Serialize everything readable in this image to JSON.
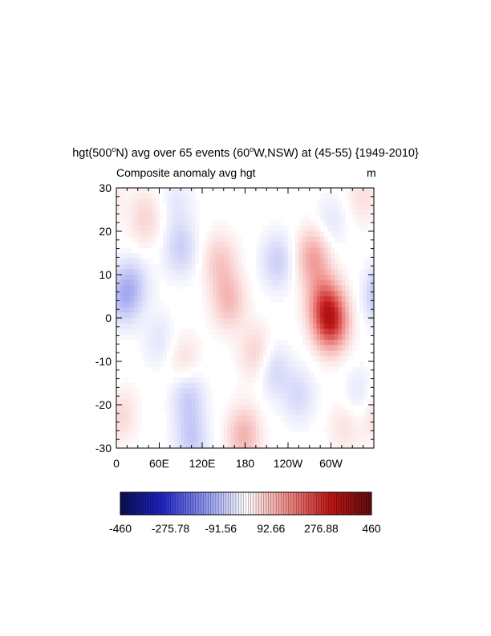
{
  "chart_data": {
    "type": "heatmap",
    "title": "hgt(500ºN) avg over 65 events (60ºW,NSW) at (45-55) {1949-2010}",
    "title_parts": [
      "hgt(500",
      "o",
      "N) avg over 65 events (60",
      "o",
      "W,NSW) at (45-55) {1949-2010}"
    ],
    "subtitle": "Composite anomaly avg hgt",
    "units": "m",
    "x_ticks": [
      {
        "lon": 0,
        "label": "0"
      },
      {
        "lon": 60,
        "label": "60E"
      },
      {
        "lon": 120,
        "label": "120E"
      },
      {
        "lon": 180,
        "label": "180"
      },
      {
        "lon": 240,
        "label": "120W"
      },
      {
        "lon": 300,
        "label": "60W"
      }
    ],
    "y_ticks": [
      {
        "lat": 30,
        "label": "30"
      },
      {
        "lat": 20,
        "label": "20"
      },
      {
        "lat": 10,
        "label": "10"
      },
      {
        "lat": 0,
        "label": "0"
      },
      {
        "lat": -10,
        "label": "-10"
      },
      {
        "lat": -20,
        "label": "-20"
      },
      {
        "lat": -30,
        "label": "-30"
      }
    ],
    "xlim": [
      0,
      360
    ],
    "ylim": [
      -30,
      30
    ],
    "colorbar": {
      "min": -460,
      "max": 460,
      "labels": [
        "-460",
        "-275.78",
        "-91.56",
        "92.66",
        "276.88",
        "460"
      ],
      "colors": [
        "#0a0d4f",
        "#1f25c4",
        "#8a90ee",
        "#ffffff",
        "#ef8a86",
        "#c01616",
        "#5e0d0d"
      ]
    },
    "anomaly_features": [
      {
        "lon": 300,
        "lat": -1,
        "value": 260
      },
      {
        "lon": 290,
        "lat": 4,
        "value": 150
      },
      {
        "lon": 275,
        "lat": 14,
        "value": 120
      },
      {
        "lon": 157,
        "lat": 4,
        "value": 90
      },
      {
        "lon": 145,
        "lat": 13,
        "value": 70
      },
      {
        "lon": 195,
        "lat": -8,
        "value": 60
      },
      {
        "lon": 178,
        "lat": -27,
        "value": 100
      },
      {
        "lon": 40,
        "lat": 23,
        "value": 55
      },
      {
        "lon": 5,
        "lat": -22,
        "value": 55
      },
      {
        "lon": 95,
        "lat": -10,
        "value": 45
      },
      {
        "lon": 345,
        "lat": 28,
        "value": 40
      },
      {
        "lon": 320,
        "lat": -25,
        "value": 40
      },
      {
        "lon": 10,
        "lat": 5,
        "value": -90
      },
      {
        "lon": 25,
        "lat": 8,
        "value": -50
      },
      {
        "lon": 100,
        "lat": -18,
        "value": -70
      },
      {
        "lon": 90,
        "lat": 16,
        "value": -65
      },
      {
        "lon": 225,
        "lat": 13,
        "value": -65
      },
      {
        "lon": 220,
        "lat": -12,
        "value": -55
      },
      {
        "lon": 105,
        "lat": -28,
        "value": -70
      },
      {
        "lon": 255,
        "lat": -18,
        "value": -50
      },
      {
        "lon": 340,
        "lat": -18,
        "value": -40
      },
      {
        "lon": 60,
        "lat": -5,
        "value": -35
      },
      {
        "lon": 300,
        "lat": 22,
        "value": -35
      },
      {
        "lon": 85,
        "lat": 27,
        "value": -30
      }
    ]
  }
}
